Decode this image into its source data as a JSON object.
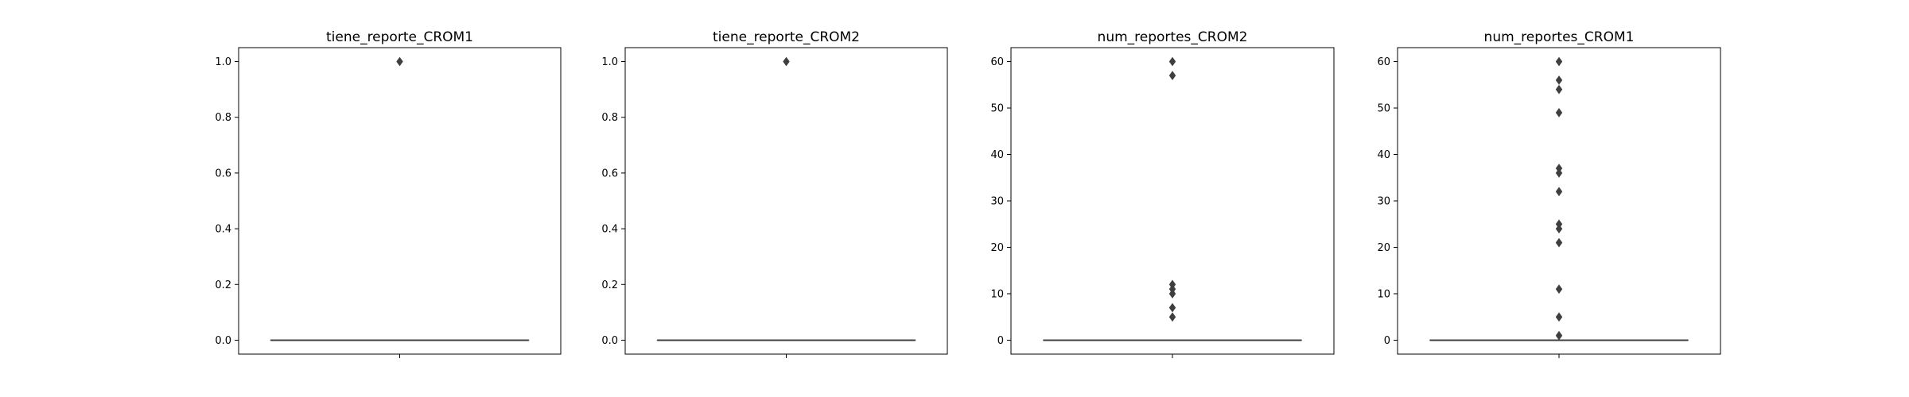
{
  "chart_data": [
    {
      "type": "box",
      "title": "tiene_reporte_CROM1",
      "xlabel": "",
      "ylabel": "",
      "ylim": [
        -0.05,
        1.05
      ],
      "yticks": [
        "0.0",
        "0.2",
        "0.4",
        "0.6",
        "0.8",
        "1.0"
      ],
      "ytick_values": [
        0.0,
        0.2,
        0.4,
        0.6,
        0.8,
        1.0
      ],
      "box": {
        "q1": 0,
        "median": 0,
        "q3": 0,
        "whisker_low": 0,
        "whisker_high": 0
      },
      "outliers": [
        1.0
      ]
    },
    {
      "type": "box",
      "title": "tiene_reporte_CROM2",
      "xlabel": "",
      "ylabel": "",
      "ylim": [
        -0.05,
        1.05
      ],
      "yticks": [
        "0.0",
        "0.2",
        "0.4",
        "0.6",
        "0.8",
        "1.0"
      ],
      "ytick_values": [
        0.0,
        0.2,
        0.4,
        0.6,
        0.8,
        1.0
      ],
      "box": {
        "q1": 0,
        "median": 0,
        "q3": 0,
        "whisker_low": 0,
        "whisker_high": 0
      },
      "outliers": [
        1.0
      ]
    },
    {
      "type": "box",
      "title": "num_reportes_CROM2",
      "xlabel": "",
      "ylabel": "",
      "ylim": [
        -3,
        63
      ],
      "yticks": [
        "0",
        "10",
        "20",
        "30",
        "40",
        "50",
        "60"
      ],
      "ytick_values": [
        0,
        10,
        20,
        30,
        40,
        50,
        60
      ],
      "box": {
        "q1": 0,
        "median": 0,
        "q3": 0,
        "whisker_low": 0,
        "whisker_high": 0
      },
      "outliers": [
        60,
        57,
        12,
        11,
        10,
        7,
        5
      ]
    },
    {
      "type": "box",
      "title": "num_reportes_CROM1",
      "xlabel": "",
      "ylabel": "",
      "ylim": [
        -3,
        63
      ],
      "yticks": [
        "0",
        "10",
        "20",
        "30",
        "40",
        "50",
        "60"
      ],
      "ytick_values": [
        0,
        10,
        20,
        30,
        40,
        50,
        60
      ],
      "box": {
        "q1": 0,
        "median": 0,
        "q3": 0,
        "whisker_low": 0,
        "whisker_high": 0
      },
      "outliers": [
        60,
        56,
        54,
        49,
        37,
        36,
        32,
        25,
        24,
        21,
        11,
        5,
        1
      ]
    }
  ],
  "style": {
    "line_color": "#3f3f3f",
    "outlier_color": "#3f3f3f",
    "axes_color": "#000000"
  }
}
